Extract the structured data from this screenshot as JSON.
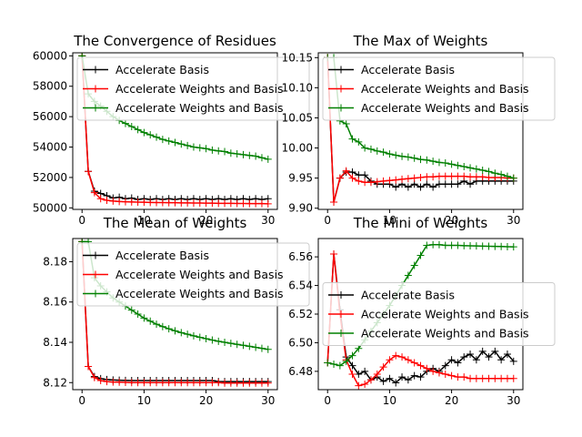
{
  "figure": {
    "colors": {
      "black": "#000000",
      "red": "#ff0000",
      "green": "#008000"
    }
  },
  "chart_data": [
    {
      "type": "line",
      "title": "The Convergence of Residues",
      "xlabel": "",
      "ylabel": "",
      "xlim": [
        -1.5,
        31.5
      ],
      "ylim": [
        49900,
        60200
      ],
      "xticks": [
        0,
        10,
        20,
        30
      ],
      "xtick_labels": [
        "0",
        "10",
        "20",
        "30"
      ],
      "yticks": [
        50000,
        52000,
        54000,
        56000,
        58000,
        60000
      ],
      "ytick_labels": [
        "50000",
        "52000",
        "54000",
        "56000",
        "58000",
        "60000"
      ],
      "legend": "upper left",
      "grid": false,
      "series": [
        {
          "name": "Accelerate Basis",
          "color": "#000000",
          "marker": "+",
          "x": [
            0,
            1,
            2,
            3,
            4,
            5,
            6,
            7,
            8,
            9,
            10,
            11,
            12,
            13,
            14,
            15,
            16,
            17,
            18,
            19,
            20,
            21,
            22,
            23,
            24,
            25,
            26,
            27,
            28,
            29,
            30
          ],
          "y": [
            60000,
            52400,
            51100,
            50950,
            50800,
            50650,
            50700,
            50600,
            50650,
            50550,
            50600,
            50550,
            50600,
            50550,
            50600,
            50550,
            50600,
            50550,
            50600,
            50550,
            50600,
            50550,
            50600,
            50550,
            50600,
            50550,
            50600,
            50550,
            50600,
            50550,
            50600
          ]
        },
        {
          "name": "Accelerate Weights and Basis",
          "color": "#ff0000",
          "marker": "+",
          "x": [
            0,
            1,
            2,
            3,
            4,
            5,
            6,
            7,
            8,
            9,
            10,
            11,
            12,
            13,
            14,
            15,
            16,
            17,
            18,
            19,
            20,
            21,
            22,
            23,
            24,
            25,
            26,
            27,
            28,
            29,
            30
          ],
          "y": [
            60000,
            52400,
            51000,
            50600,
            50500,
            50450,
            50420,
            50400,
            50390,
            50380,
            50370,
            50360,
            50350,
            50350,
            50340,
            50340,
            50330,
            50330,
            50320,
            50320,
            50310,
            50310,
            50300,
            50300,
            50300,
            50290,
            50290,
            50280,
            50280,
            50280,
            50270
          ]
        },
        {
          "name": "Accelerate Weights and Basis",
          "color": "#008000",
          "marker": "+",
          "x": [
            0,
            1,
            2,
            3,
            4,
            5,
            6,
            7,
            8,
            9,
            10,
            11,
            12,
            13,
            14,
            15,
            16,
            17,
            18,
            19,
            20,
            21,
            22,
            23,
            24,
            25,
            26,
            27,
            28,
            29,
            30
          ],
          "y": [
            60000,
            57500,
            57000,
            56700,
            56350,
            56000,
            55750,
            55550,
            55350,
            55150,
            54950,
            54800,
            54650,
            54500,
            54400,
            54300,
            54200,
            54100,
            54000,
            53950,
            53900,
            53800,
            53750,
            53700,
            53600,
            53550,
            53500,
            53450,
            53400,
            53300,
            53200
          ]
        }
      ]
    },
    {
      "type": "line",
      "title": "The Max of Weights",
      "xlabel": "",
      "ylabel": "",
      "xlim": [
        -1.5,
        31.5
      ],
      "ylim": [
        9.898,
        10.158
      ],
      "xticks": [
        0,
        10,
        20,
        30
      ],
      "xtick_labels": [
        "0",
        "10",
        "20",
        "30"
      ],
      "yticks": [
        9.9,
        9.95,
        10.0,
        10.05,
        10.1,
        10.15
      ],
      "ytick_labels": [
        "9.90",
        "9.95",
        "10.00",
        "10.05",
        "10.10",
        "10.15"
      ],
      "legend": "upper left",
      "grid": false,
      "series": [
        {
          "name": "Accelerate Basis",
          "color": "#000000",
          "marker": "+",
          "x": [
            0,
            1,
            2,
            3,
            4,
            5,
            6,
            7,
            8,
            9,
            10,
            11,
            12,
            13,
            14,
            15,
            16,
            17,
            18,
            19,
            20,
            21,
            22,
            23,
            24,
            25,
            26,
            27,
            28,
            29,
            30
          ],
          "y": [
            10.15,
            9.91,
            9.95,
            9.96,
            9.96,
            9.955,
            9.955,
            9.945,
            9.94,
            9.94,
            9.94,
            9.935,
            9.94,
            9.935,
            9.94,
            9.935,
            9.94,
            9.935,
            9.94,
            9.94,
            9.94,
            9.94,
            9.945,
            9.94,
            9.945,
            9.945,
            9.945,
            9.945,
            9.945,
            9.945,
            9.945
          ]
        },
        {
          "name": "Accelerate Weights and Basis",
          "color": "#ff0000",
          "marker": "+",
          "x": [
            0,
            1,
            2,
            3,
            4,
            5,
            6,
            7,
            8,
            9,
            10,
            11,
            12,
            13,
            14,
            15,
            16,
            17,
            18,
            19,
            20,
            21,
            22,
            23,
            24,
            25,
            26,
            27,
            28,
            29,
            30
          ],
          "y": [
            10.15,
            9.91,
            9.95,
            9.962,
            9.95,
            9.945,
            9.943,
            9.943,
            9.944,
            9.945,
            9.946,
            9.947,
            9.948,
            9.949,
            9.95,
            9.951,
            9.952,
            9.952,
            9.953,
            9.953,
            9.953,
            9.953,
            9.953,
            9.952,
            9.952,
            9.952,
            9.951,
            9.951,
            9.951,
            9.95,
            9.95
          ]
        },
        {
          "name": "Accelerate Weights and Basis",
          "color": "#008000",
          "marker": "+",
          "x": [
            0,
            1,
            2,
            3,
            4,
            5,
            6,
            7,
            8,
            9,
            10,
            11,
            12,
            13,
            14,
            15,
            16,
            17,
            18,
            19,
            20,
            21,
            22,
            23,
            24,
            25,
            26,
            27,
            28,
            29,
            30
          ],
          "y": [
            10.15,
            10.15,
            10.045,
            10.04,
            10.015,
            10.01,
            10.0,
            9.998,
            9.995,
            9.993,
            9.99,
            9.988,
            9.986,
            9.985,
            9.983,
            9.981,
            9.98,
            9.978,
            9.976,
            9.975,
            9.973,
            9.971,
            9.969,
            9.967,
            9.965,
            9.963,
            9.961,
            9.958,
            9.956,
            9.953,
            9.95
          ]
        }
      ]
    },
    {
      "type": "line",
      "title": "The Mean of Weights",
      "xlabel": "",
      "ylabel": "",
      "xlim": [
        -1.5,
        31.5
      ],
      "ylim": [
        8.1165,
        8.1915
      ],
      "xticks": [
        0,
        10,
        20,
        30
      ],
      "xtick_labels": [
        "0",
        "10",
        "20",
        "30"
      ],
      "yticks": [
        8.12,
        8.14,
        8.16,
        8.18
      ],
      "ytick_labels": [
        "8.12",
        "8.14",
        "8.16",
        "8.18"
      ],
      "legend": "upper left",
      "grid": false,
      "series": [
        {
          "name": "Accelerate Basis",
          "color": "#000000",
          "marker": "+",
          "x": [
            0,
            1,
            2,
            3,
            4,
            5,
            6,
            7,
            8,
            9,
            10,
            11,
            12,
            13,
            14,
            15,
            16,
            17,
            18,
            19,
            20,
            21,
            22,
            23,
            24,
            25,
            26,
            27,
            28,
            29,
            30
          ],
          "y": [
            8.19,
            8.128,
            8.123,
            8.122,
            8.1215,
            8.1213,
            8.1212,
            8.1211,
            8.121,
            8.121,
            8.121,
            8.121,
            8.121,
            8.121,
            8.121,
            8.121,
            8.121,
            8.121,
            8.121,
            8.121,
            8.121,
            8.121,
            8.1205,
            8.1205,
            8.1205,
            8.1205,
            8.1205,
            8.1205,
            8.1205,
            8.1205,
            8.1205
          ]
        },
        {
          "name": "Accelerate Weights and Basis",
          "color": "#ff0000",
          "marker": "+",
          "x": [
            0,
            1,
            2,
            3,
            4,
            5,
            6,
            7,
            8,
            9,
            10,
            11,
            12,
            13,
            14,
            15,
            16,
            17,
            18,
            19,
            20,
            21,
            22,
            23,
            24,
            25,
            26,
            27,
            28,
            29,
            30
          ],
          "y": [
            8.19,
            8.128,
            8.1225,
            8.121,
            8.1205,
            8.1203,
            8.1202,
            8.1201,
            8.12,
            8.12,
            8.12,
            8.12,
            8.12,
            8.12,
            8.12,
            8.12,
            8.12,
            8.12,
            8.12,
            8.12,
            8.12,
            8.12,
            8.12,
            8.1198,
            8.1198,
            8.1198,
            8.1198,
            8.1198,
            8.1198,
            8.1198,
            8.1198
          ]
        },
        {
          "name": "Accelerate Weights and Basis",
          "color": "#008000",
          "marker": "+",
          "x": [
            0,
            1,
            2,
            3,
            4,
            5,
            6,
            7,
            8,
            9,
            10,
            11,
            12,
            13,
            14,
            15,
            16,
            17,
            18,
            19,
            20,
            21,
            22,
            23,
            24,
            25,
            26,
            27,
            28,
            29,
            30
          ],
          "y": [
            8.19,
            8.19,
            8.172,
            8.168,
            8.165,
            8.162,
            8.16,
            8.158,
            8.156,
            8.154,
            8.152,
            8.1505,
            8.149,
            8.1478,
            8.1467,
            8.1457,
            8.1448,
            8.144,
            8.1432,
            8.1425,
            8.1418,
            8.1411,
            8.1405,
            8.14,
            8.1395,
            8.139,
            8.1385,
            8.138,
            8.1375,
            8.137,
            8.1365
          ]
        }
      ]
    },
    {
      "type": "line",
      "title": "The Mini of Weights",
      "xlabel": "",
      "ylabel": "",
      "xlim": [
        -1.5,
        31.5
      ],
      "ylim": [
        6.4672,
        6.5728
      ],
      "xticks": [
        0,
        10,
        20,
        30
      ],
      "xtick_labels": [
        "0",
        "10",
        "20",
        "30"
      ],
      "yticks": [
        6.48,
        6.5,
        6.52,
        6.54,
        6.56
      ],
      "ytick_labels": [
        "6.48",
        "6.50",
        "6.52",
        "6.54",
        "6.56"
      ],
      "legend": "center left",
      "grid": false,
      "series": [
        {
          "name": "Accelerate Basis",
          "color": "#000000",
          "marker": "+",
          "x": [
            0,
            1,
            2,
            3,
            4,
            5,
            6,
            7,
            8,
            9,
            10,
            11,
            12,
            13,
            14,
            15,
            16,
            17,
            18,
            19,
            20,
            21,
            22,
            23,
            24,
            25,
            26,
            27,
            28,
            29,
            30
          ],
          "y": [
            6.486,
            6.562,
            6.523,
            6.49,
            6.484,
            6.478,
            6.48,
            6.474,
            6.476,
            6.473,
            6.475,
            6.472,
            6.476,
            6.474,
            6.477,
            6.476,
            6.48,
            6.482,
            6.48,
            6.484,
            6.488,
            6.486,
            6.49,
            6.492,
            6.488,
            6.494,
            6.49,
            6.494,
            6.488,
            6.492,
            6.487
          ]
        },
        {
          "name": "Accelerate Weights and Basis",
          "color": "#ff0000",
          "marker": "+",
          "x": [
            0,
            1,
            2,
            3,
            4,
            5,
            6,
            7,
            8,
            9,
            10,
            11,
            12,
            13,
            14,
            15,
            16,
            17,
            18,
            19,
            20,
            21,
            22,
            23,
            24,
            25,
            26,
            27,
            28,
            29,
            30
          ],
          "y": [
            6.486,
            6.562,
            6.52,
            6.488,
            6.478,
            6.47,
            6.471,
            6.474,
            6.478,
            6.483,
            6.488,
            6.491,
            6.49,
            6.488,
            6.486,
            6.484,
            6.482,
            6.48,
            6.479,
            6.478,
            6.477,
            6.476,
            6.476,
            6.475,
            6.475,
            6.475,
            6.475,
            6.475,
            6.475,
            6.475,
            6.475
          ]
        },
        {
          "name": "Accelerate Weights and Basis",
          "color": "#008000",
          "marker": "+",
          "x": [
            0,
            1,
            2,
            3,
            4,
            5,
            6,
            7,
            8,
            9,
            10,
            11,
            12,
            13,
            14,
            15,
            16,
            17,
            18,
            19,
            20,
            21,
            22,
            23,
            24,
            25,
            26,
            27,
            28,
            29,
            30
          ],
          "y": [
            6.486,
            6.485,
            6.484,
            6.487,
            6.491,
            6.496,
            6.502,
            6.508,
            6.514,
            6.52,
            6.526,
            6.533,
            6.54,
            6.547,
            6.554,
            6.561,
            6.568,
            6.5685,
            6.5685,
            6.568,
            6.568,
            6.568,
            6.5678,
            6.5677,
            6.5676,
            6.5675,
            6.5674,
            6.5673,
            6.5672,
            6.5671,
            6.567
          ]
        }
      ]
    }
  ]
}
